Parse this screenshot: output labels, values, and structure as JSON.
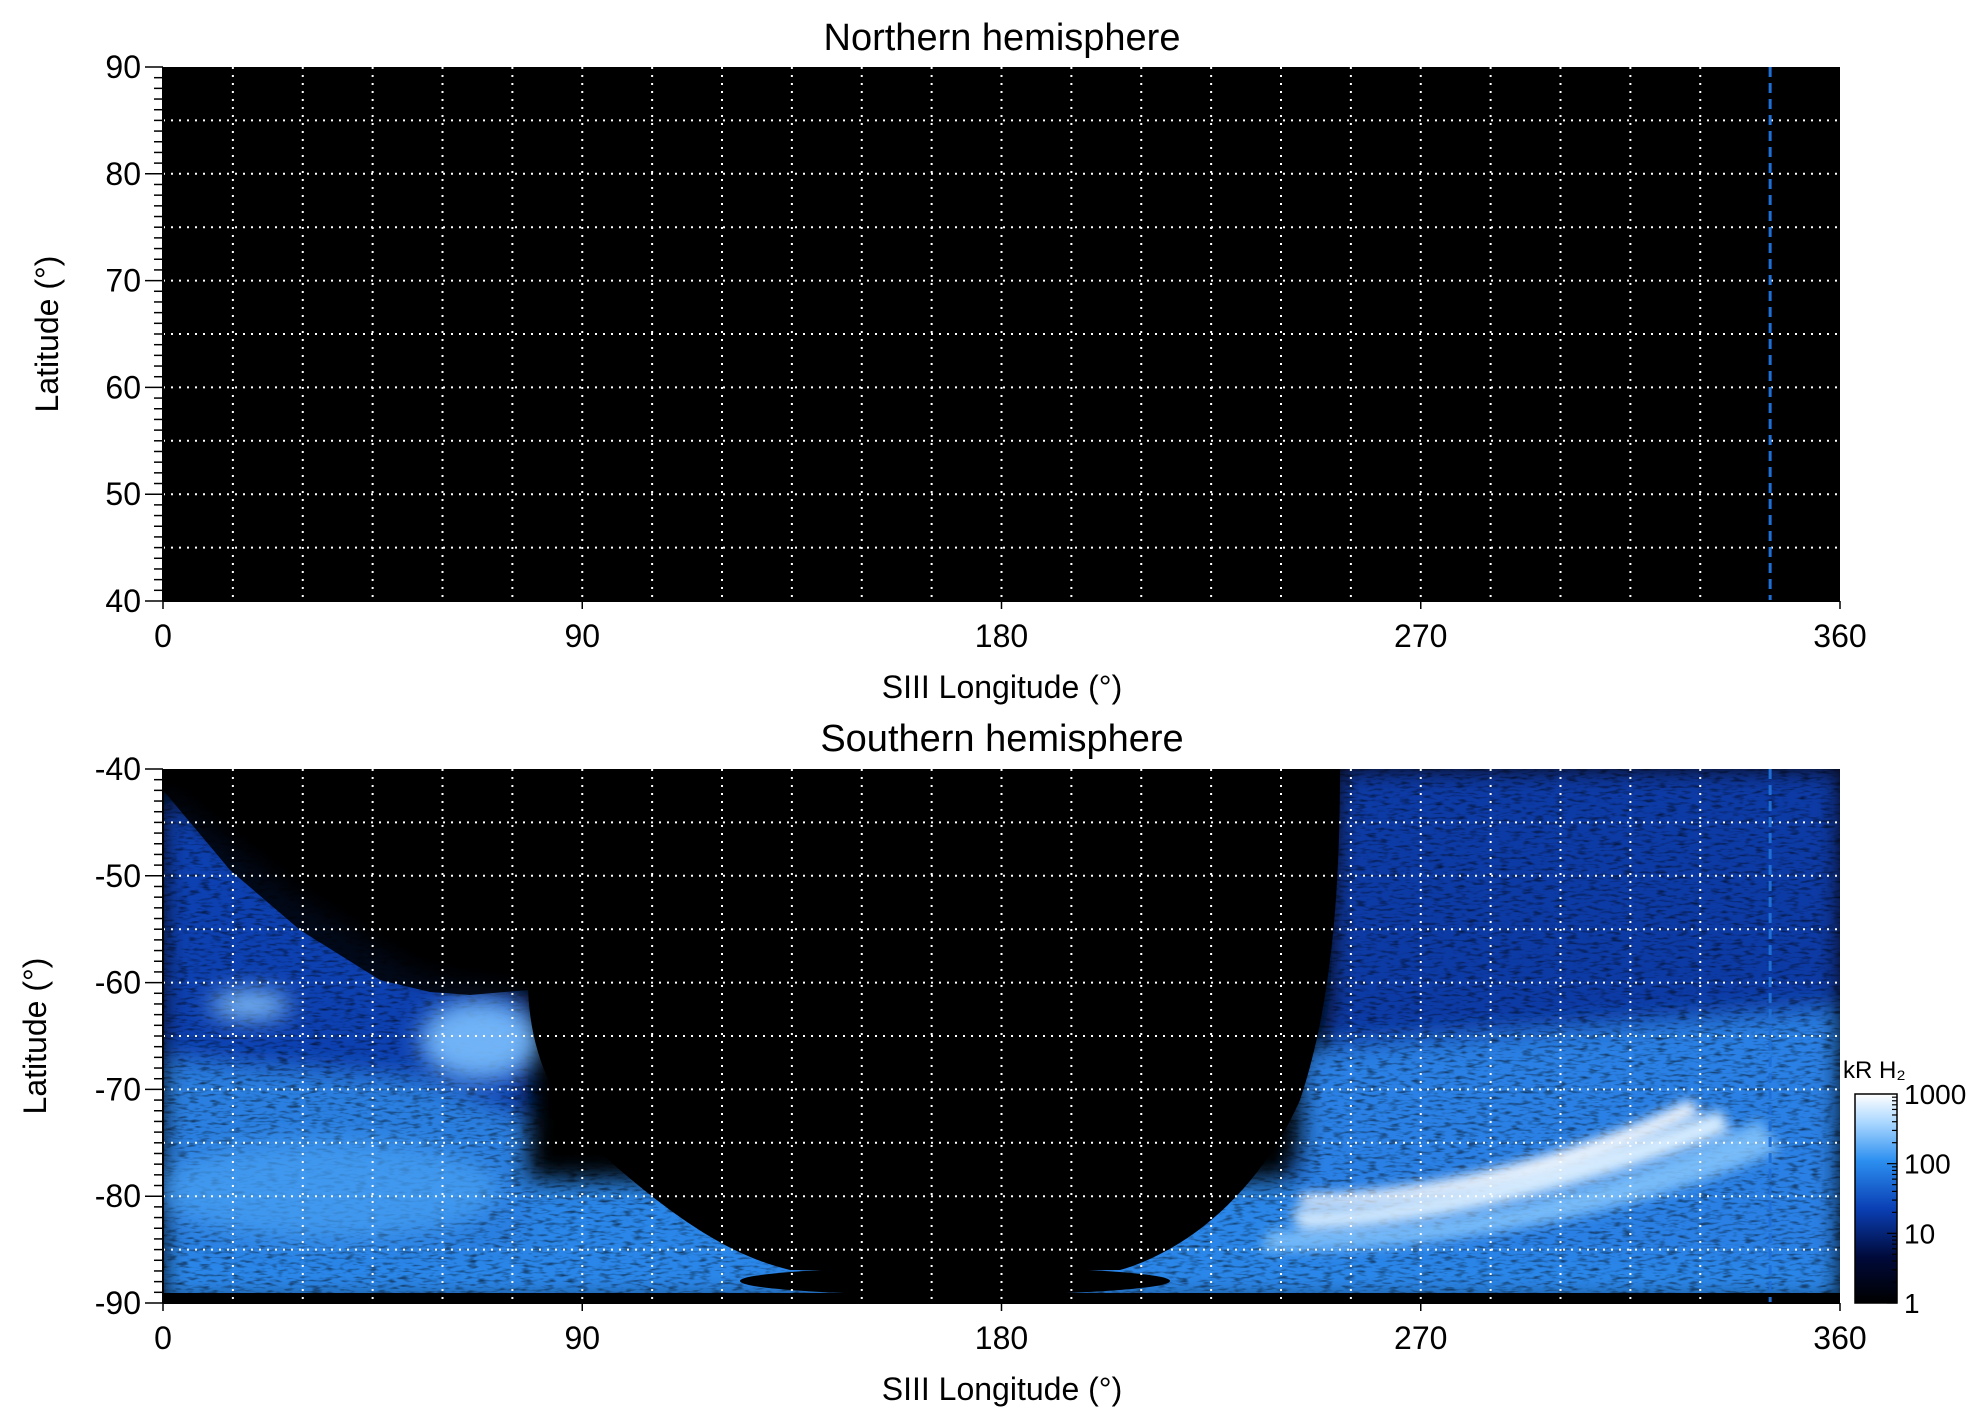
{
  "colors": {
    "background": "#000000",
    "grid": "#ffffff",
    "marker_line": "#1f6fd6",
    "colormap": [
      "#000000",
      "#000a3a",
      "#0a3fb4",
      "#2c8ff0",
      "#a8d6ff",
      "#ffffff"
    ]
  },
  "chart_data": [
    {
      "type": "heatmap",
      "title": "Northern hemisphere",
      "xlabel": "SIII Longitude (°)",
      "ylabel": "Latitude (°)",
      "xlim": [
        0,
        360
      ],
      "ylim": [
        40,
        90
      ],
      "x_ticks": [
        "0",
        "90",
        "180",
        "270",
        "360"
      ],
      "y_ticks": [
        "40",
        "50",
        "60",
        "70",
        "80",
        "90"
      ],
      "grid": true,
      "grid_x_step": 15,
      "grid_y_step": 5,
      "marker_longitude": 345,
      "emission": "none"
    },
    {
      "type": "heatmap",
      "title": "Southern hemisphere",
      "xlabel": "SIII Longitude (°)",
      "ylabel": "Latitude (°)",
      "xlim": [
        0,
        360
      ],
      "ylim": [
        -90,
        -40
      ],
      "x_ticks": [
        "0",
        "90",
        "180",
        "270",
        "360"
      ],
      "y_ticks": [
        "-90",
        "-80",
        "-70",
        "-60",
        "-50",
        "-40"
      ],
      "grid": true,
      "grid_x_step": 15,
      "grid_y_step": 5,
      "marker_longitude": 345,
      "no_data_region": {
        "longitude_range": [
          78,
          253
        ],
        "top_latitude": -40
      },
      "auroral_oval": {
        "peak_longitude_range": [
          245,
          330
        ],
        "latitude_range": [
          -82,
          -75
        ],
        "peak_brightness_kR": 1000
      }
    }
  ],
  "colorbar": {
    "label": "kR H₂",
    "scale": "log",
    "range": [
      1,
      1000
    ],
    "tick_labels": [
      "1",
      "10",
      "100",
      "1000"
    ]
  }
}
